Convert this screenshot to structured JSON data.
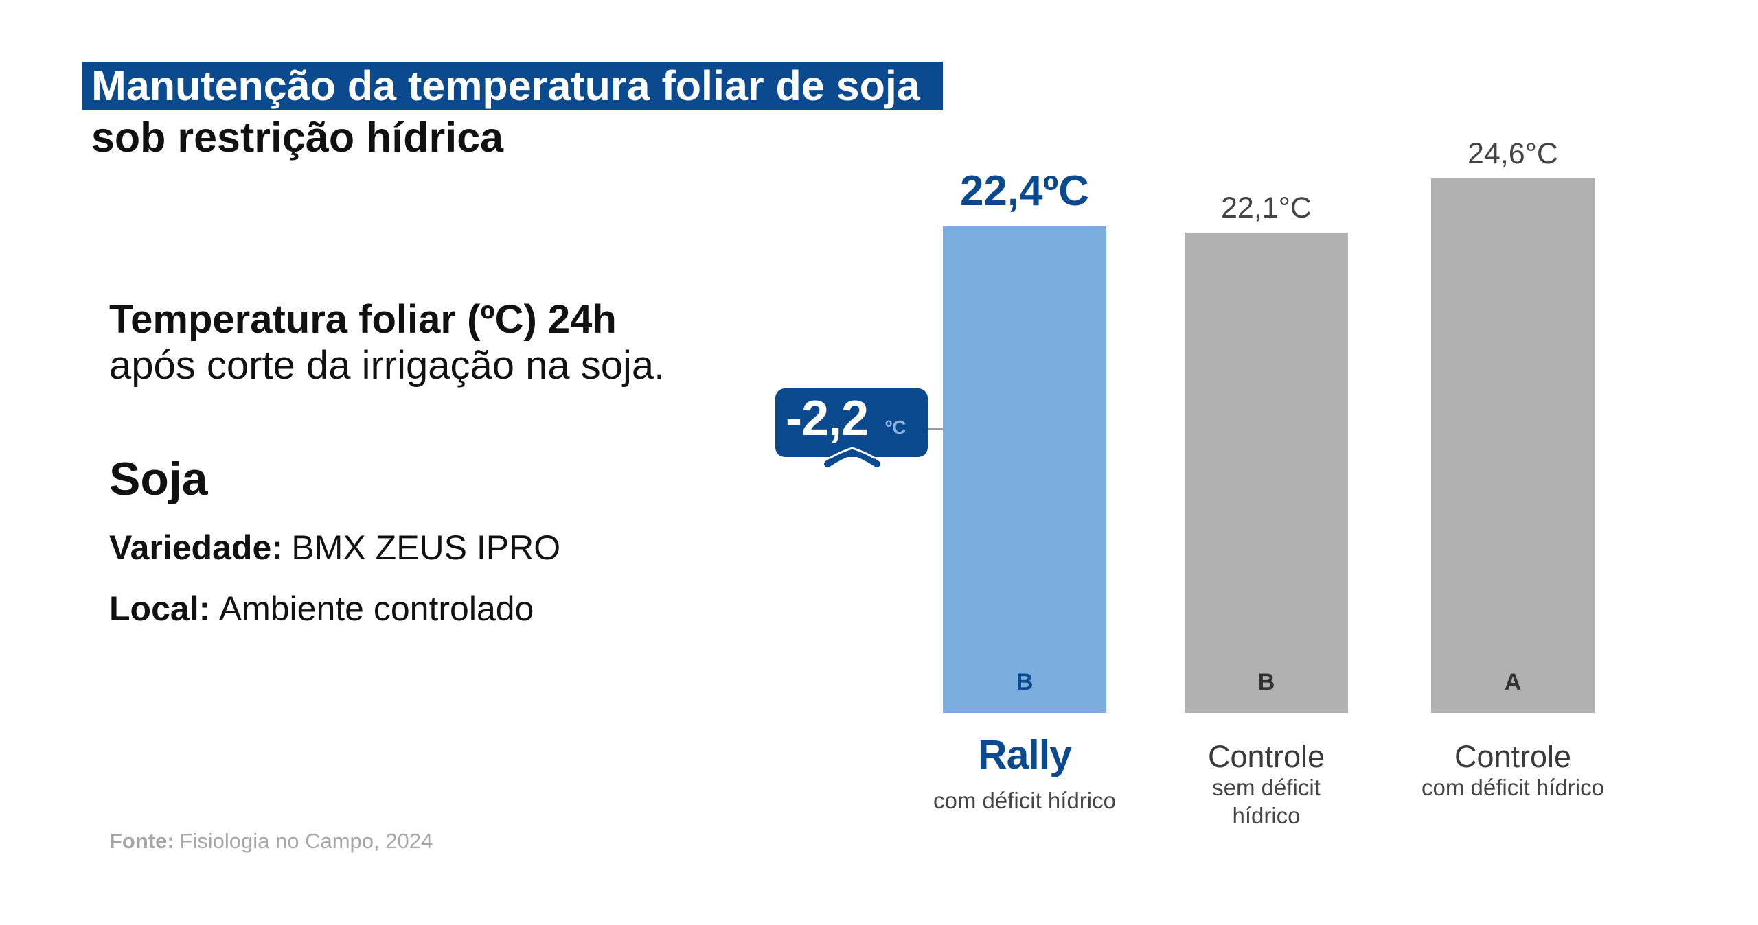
{
  "chart_data": {
    "type": "bar",
    "title": "Manutenção da temperatura foliar de soja",
    "subtitle": "sob restrição hídrica",
    "categories": [
      "Rally",
      "Controle",
      "Controle"
    ],
    "category_notes": [
      "com déficit hídrico",
      "sem déficit hídrico",
      "com déficit hídrico"
    ],
    "values": [
      22.4,
      22.1,
      24.6
    ],
    "value_labels": [
      "22,4ºC",
      "22,1°C",
      "24,6°C"
    ],
    "significance_letters": [
      "B",
      "B",
      "A"
    ],
    "bar_colors": [
      "#7badde",
      "#b1b1b1",
      "#b1b1b1"
    ],
    "highlighted_index": 0,
    "ylim": [
      0,
      24.6
    ],
    "y_axis_visible": false,
    "grid": false,
    "legend": "none",
    "difference_badge": {
      "value": "-2,2",
      "unit": "ºC"
    }
  },
  "info": {
    "heading": "Temperatura foliar (ºC) 24h",
    "subheading": "após corte da irrigação na soja.",
    "crop": "Soja",
    "variety_label": "Variedade:",
    "variety_value": "BMX ZEUS IPRO",
    "location_label": "Local:",
    "location_value": "Ambiente controlado"
  },
  "source": {
    "label": "Fonte:",
    "value": "Fisiologia no Campo, 2024"
  },
  "colors": {
    "brand_blue": "#0b4a8f",
    "badge_unit": "#8cb3e0",
    "text_dark": "#111111",
    "text_gray": "#444444",
    "source_gray": "#a6a6a6",
    "background": "#ffffff"
  }
}
